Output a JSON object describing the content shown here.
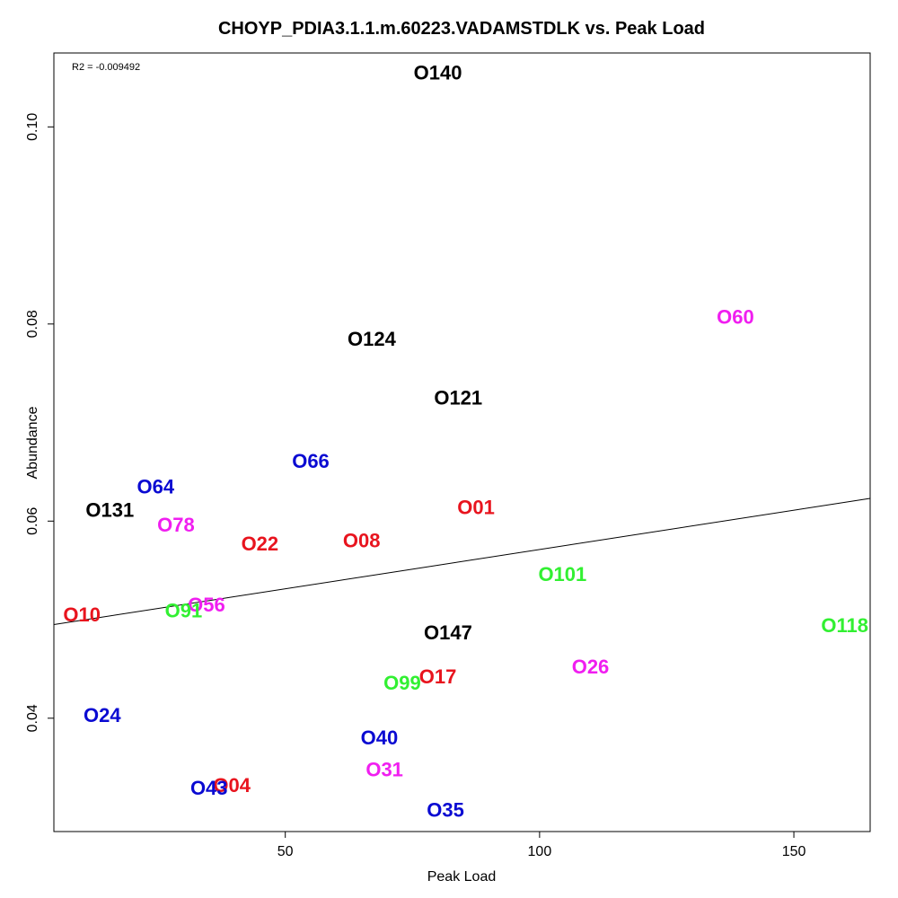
{
  "chart_data": {
    "type": "scatter",
    "title": "CHOYP_PDIA3.1.1.m.60223.VADAMSTDLK vs. Peak Load",
    "xlabel": "Peak Load",
    "ylabel": "Abundance",
    "annotation": "R2 = -0.009492",
    "xlim": [
      4.5,
      165
    ],
    "ylim": [
      0.0285,
      0.1075
    ],
    "xticks": [
      50,
      100,
      150
    ],
    "yticks": [
      0.04,
      0.06,
      0.08,
      0.1
    ],
    "ytick_labels": [
      "0.04",
      "0.06",
      "0.08",
      "0.10"
    ],
    "grid": false,
    "legend": "none",
    "fit_line": {
      "x": [
        4.5,
        165
      ],
      "y": [
        0.0495,
        0.0623
      ]
    },
    "colors": {
      "red": "#e8141e",
      "blue": "#0a0ad2",
      "black": "#000000",
      "green": "#32f032",
      "magenta": "#f01ef0"
    },
    "points": [
      {
        "label": "O140",
        "x": 80,
        "y": 0.1055,
        "color": "black"
      },
      {
        "label": "O60",
        "x": 138.5,
        "y": 0.0807,
        "color": "magenta"
      },
      {
        "label": "O124",
        "x": 67,
        "y": 0.0785,
        "color": "black"
      },
      {
        "label": "O121",
        "x": 84,
        "y": 0.0725,
        "color": "black"
      },
      {
        "label": "O66",
        "x": 55,
        "y": 0.0661,
        "color": "blue"
      },
      {
        "label": "O64",
        "x": 24.5,
        "y": 0.0635,
        "color": "blue"
      },
      {
        "label": "O131",
        "x": 15.5,
        "y": 0.0611,
        "color": "black"
      },
      {
        "label": "O01",
        "x": 87.5,
        "y": 0.0614,
        "color": "red"
      },
      {
        "label": "O78",
        "x": 28.5,
        "y": 0.0596,
        "color": "magenta"
      },
      {
        "label": "O22",
        "x": 45,
        "y": 0.0577,
        "color": "red"
      },
      {
        "label": "O08",
        "x": 65,
        "y": 0.058,
        "color": "red"
      },
      {
        "label": "O101",
        "x": 104.5,
        "y": 0.0546,
        "color": "green"
      },
      {
        "label": "O10",
        "x": 10,
        "y": 0.0505,
        "color": "red"
      },
      {
        "label": "O56",
        "x": 34.5,
        "y": 0.0515,
        "color": "magenta"
      },
      {
        "label": "O91",
        "x": 30,
        "y": 0.0509,
        "color": "green"
      },
      {
        "label": "O118",
        "x": 160,
        "y": 0.0494,
        "color": "green"
      },
      {
        "label": "O147",
        "x": 82,
        "y": 0.0487,
        "color": "black"
      },
      {
        "label": "O26",
        "x": 110,
        "y": 0.0452,
        "color": "magenta"
      },
      {
        "label": "O17",
        "x": 80,
        "y": 0.0442,
        "color": "red"
      },
      {
        "label": "O99",
        "x": 73,
        "y": 0.0436,
        "color": "green"
      },
      {
        "label": "O24",
        "x": 14,
        "y": 0.0403,
        "color": "blue"
      },
      {
        "label": "O40",
        "x": 68.5,
        "y": 0.038,
        "color": "blue"
      },
      {
        "label": "O31",
        "x": 69.5,
        "y": 0.0348,
        "color": "magenta"
      },
      {
        "label": "O04",
        "x": 39.5,
        "y": 0.0332,
        "color": "red"
      },
      {
        "label": "O43",
        "x": 35,
        "y": 0.0329,
        "color": "blue"
      },
      {
        "label": "O35",
        "x": 81.5,
        "y": 0.0307,
        "color": "blue"
      }
    ]
  }
}
